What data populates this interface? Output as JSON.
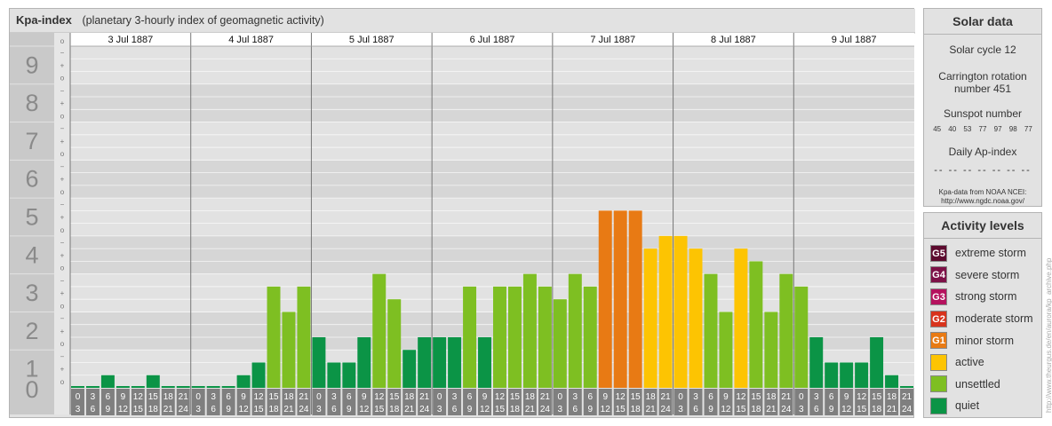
{
  "header": {
    "title": "Kpa-index",
    "subtitle": "(planetary 3-hourly index of geomagnetic activity)"
  },
  "chart_data": {
    "type": "bar",
    "title": "Kpa-index",
    "subtitle": "(planetary 3-hourly index of geomagnetic activity)",
    "ylim": [
      0,
      9
    ],
    "y_ticks": [
      "0",
      "1",
      "2",
      "3",
      "4",
      "5",
      "6",
      "7",
      "8",
      "9"
    ],
    "sub_ticks": [
      "o",
      "+",
      "−"
    ],
    "days": [
      "3 Jul 1887",
      "4 Jul 1887",
      "5 Jul 1887",
      "6 Jul 1887",
      "7 Jul 1887",
      "8 Jul 1887",
      "9 Jul 1887"
    ],
    "interval_starts": [
      "0",
      "3",
      "6",
      "9",
      "12",
      "15",
      "18",
      "21"
    ],
    "interval_ends": [
      "3",
      "6",
      "9",
      "12",
      "15",
      "18",
      "21",
      "24"
    ],
    "values": [
      0.0,
      0.0,
      0.333,
      0.0,
      0.0,
      0.333,
      0.0,
      0.0,
      0.0,
      0.0,
      0.0,
      0.333,
      0.667,
      2.667,
      2.0,
      2.667,
      1.333,
      0.667,
      0.667,
      1.333,
      3.0,
      2.333,
      1.0,
      1.333,
      1.333,
      1.333,
      2.667,
      1.333,
      2.667,
      2.667,
      3.0,
      2.667,
      2.333,
      3.0,
      2.667,
      4.667,
      4.667,
      4.667,
      3.667,
      4.0,
      4.0,
      3.667,
      3.0,
      2.0,
      3.667,
      3.333,
      2.0,
      3.0,
      2.667,
      1.333,
      0.667,
      0.667,
      0.667,
      1.333,
      0.333,
      0.0
    ],
    "level_colors": {
      "quiet": "#0b9446",
      "unsettled": "#7ebf22",
      "active": "#fdc402",
      "minor": "#e87a14"
    },
    "grid": true,
    "legend": "right"
  },
  "solar": {
    "title": "Solar data",
    "cycle": "Solar cycle 12",
    "carrington_line1": "Carrington rotation",
    "carrington_line2": "number 451",
    "sunspot_label": "Sunspot number",
    "sunspot_values": "45 40 53 77 97 98 77",
    "ap_label": "Daily Ap-index",
    "ap_values": "-- -- -- -- -- -- --",
    "note_line1": "Kpa-data from NOAA NCEI:",
    "note_line2": "http://www.ngdc.noaa.gov/"
  },
  "levels": {
    "title": "Activity levels",
    "items": [
      {
        "code": "G5",
        "label": "extreme storm",
        "color": "#5c0a2e"
      },
      {
        "code": "G4",
        "label": "severe storm",
        "color": "#7d1147"
      },
      {
        "code": "G3",
        "label": "strong storm",
        "color": "#b5125e"
      },
      {
        "code": "G2",
        "label": "moderate storm",
        "color": "#d8331c"
      },
      {
        "code": "G1",
        "label": "minor storm",
        "color": "#e87a14"
      },
      {
        "code": "",
        "label": "active",
        "color": "#fdc402"
      },
      {
        "code": "",
        "label": "unsettled",
        "color": "#7ebf22"
      },
      {
        "code": "",
        "label": "quiet",
        "color": "#0b9446"
      }
    ]
  },
  "credit": "http://www.theurgus.de/en/aurora/kp_archive.php"
}
